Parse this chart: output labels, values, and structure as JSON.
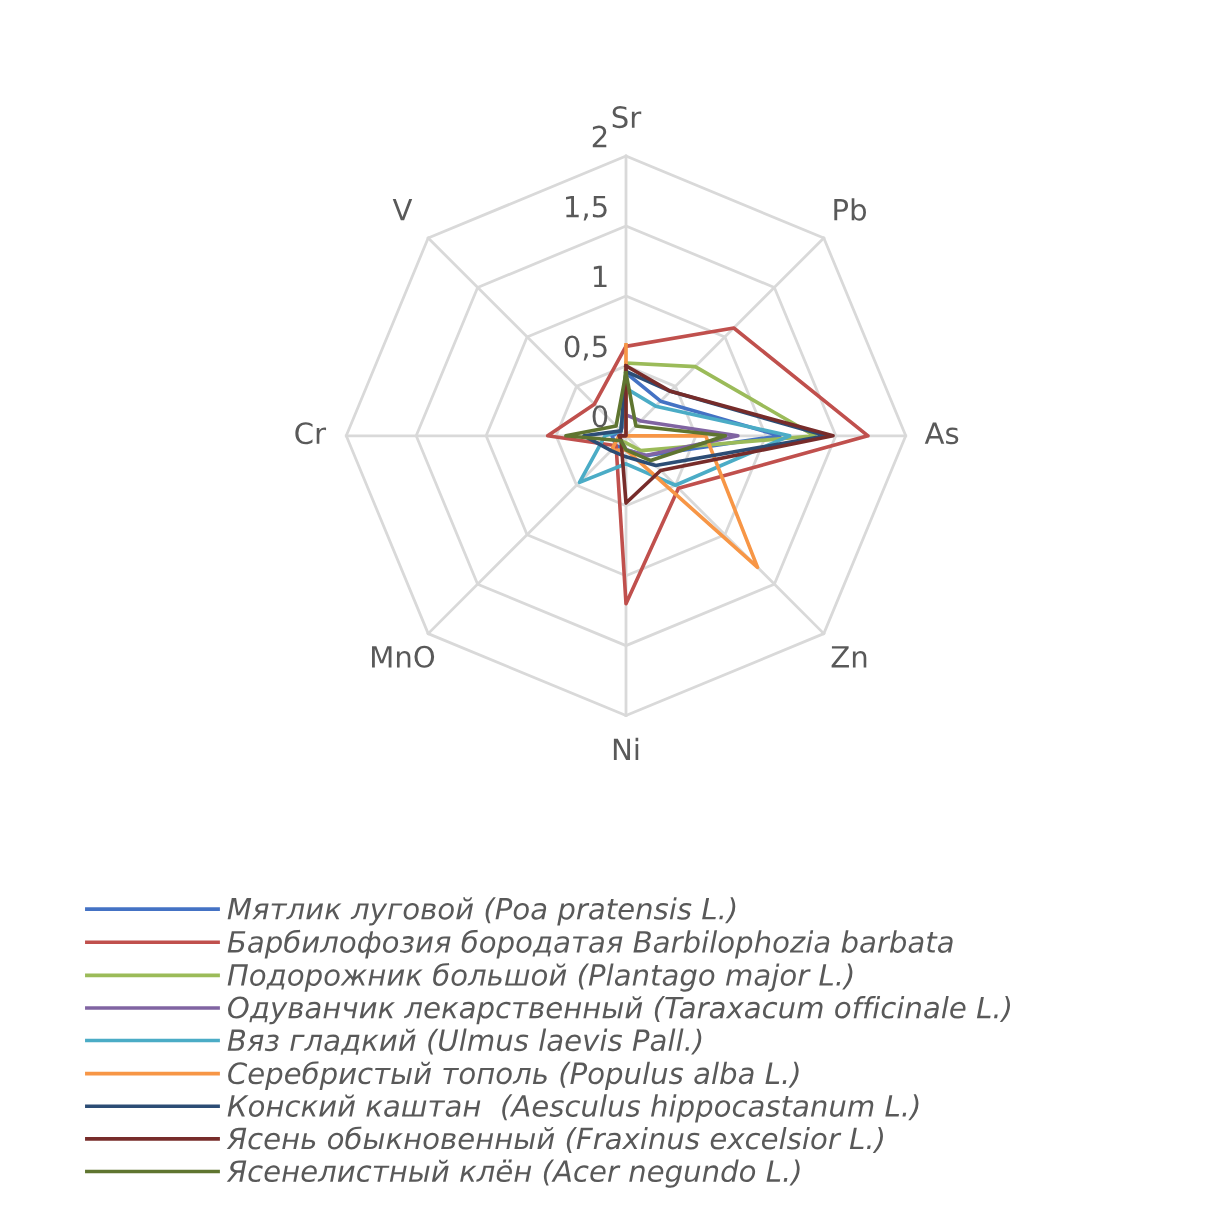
{
  "chart_data": {
    "type": "radar",
    "categories": [
      "Sr",
      "Pb",
      "As",
      "Zn",
      "Ni",
      "MnO",
      "Cr",
      "V"
    ],
    "ylim": [
      0,
      2
    ],
    "yticks": [
      0,
      {
        "value": 0.5,
        "label": "0,5"
      },
      1,
      {
        "value": 1.5,
        "label": "1,5"
      },
      2
    ],
    "grid": true,
    "legend": "bottom",
    "series": [
      {
        "name": "Мятлик луговой (Poa pratensis L.)",
        "color": "#4472c4",
        "values": [
          0.45,
          0.35,
          1.1,
          0.2,
          0.1,
          0.1,
          0.1,
          0.05
        ]
      },
      {
        "name": "Барбилофозия бородатая Barbilophozia barbata",
        "color": "#c0504d",
        "values": [
          0.64,
          1.09,
          1.73,
          0.53,
          1.2,
          0.1,
          0.56,
          0.32
        ]
      },
      {
        "name": "Подорожник большой (Plantago major L.)",
        "color": "#9bbb59",
        "values": [
          0.52,
          0.7,
          1.35,
          0.15,
          0.05,
          0.05,
          0.05,
          0.05
        ]
      },
      {
        "name": "Одуванчик лекарственный (Taraxacum officinale L.)",
        "color": "#8064a2",
        "values": [
          0.15,
          0.15,
          0.8,
          0.2,
          0.1,
          0.05,
          0.05,
          0.05
        ]
      },
      {
        "name": "Вяз гладкий (Ulmus laevis Pall.)",
        "color": "#4bacc6",
        "values": [
          0.34,
          0.3,
          1.17,
          0.5,
          0.2,
          0.47,
          0.15,
          0.05
        ]
      },
      {
        "name": "Серебристый тополь (Populus alba L.)",
        "color": "#f79646",
        "values": [
          0.65,
          0.0,
          0.57,
          1.33,
          0.1,
          0.15,
          0.05,
          0.0
        ]
      },
      {
        "name": "Конский каштан  (Aesculus hippocastanum L.)",
        "color": "#2c4d75",
        "values": [
          0.46,
          0.45,
          1.43,
          0.3,
          0.15,
          0.15,
          0.3,
          0.05
        ]
      },
      {
        "name": "Ясень обыкновенный (Fraxinus excelsior L.)",
        "color": "#772c2a",
        "values": [
          0.5,
          0.45,
          1.48,
          0.35,
          0.48,
          0.05,
          0.05,
          0.0
        ]
      },
      {
        "name": "Ясенелистный клён (Acer negundo L.)",
        "color": "#5f7530",
        "values": [
          0.45,
          0.1,
          0.71,
          0.25,
          0.1,
          0.05,
          0.43,
          0.1
        ]
      }
    ]
  }
}
